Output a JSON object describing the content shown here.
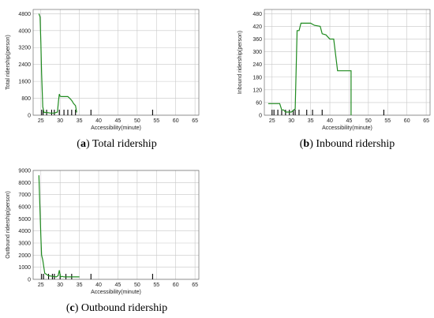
{
  "chart_data": [
    {
      "type": "line",
      "caption_letter": "a",
      "caption_text": " Total ridership",
      "xlabel": "Accessibility(minute)",
      "ylabel": "Total ridership(person)",
      "xlim": [
        23,
        66
      ],
      "ylim": [
        0,
        5000
      ],
      "xticks": [
        25,
        30,
        35,
        40,
        45,
        50,
        55,
        60,
        65
      ],
      "yticks": [
        0,
        800,
        1600,
        2400,
        3200,
        4000,
        4800
      ],
      "grid": true,
      "series_color": "#1f8a1f",
      "x": [
        24.5,
        24.8,
        25.0,
        25.2,
        25.5,
        25.8,
        26.5,
        27.5,
        28.5,
        29.3,
        29.6,
        29.8,
        30.0,
        30.3,
        31.0,
        32.0,
        32.5,
        33.0,
        33.5,
        34.0,
        34.3
      ],
      "y": [
        4800,
        4650,
        3400,
        2000,
        400,
        130,
        130,
        100,
        100,
        150,
        700,
        1000,
        900,
        880,
        880,
        880,
        800,
        700,
        550,
        450,
        130
      ],
      "rug": [
        25.2,
        25.6,
        26.5,
        27.8,
        28.5,
        29.8,
        31.0,
        32.0,
        33.0,
        34.0,
        38.0,
        54.0
      ]
    },
    {
      "type": "line",
      "caption_letter": "b",
      "caption_text": " Inbound ridership",
      "xlabel": "Accessibility(minute)",
      "ylabel": "Inbound ridership(person)",
      "xlim": [
        23,
        66
      ],
      "ylim": [
        0,
        500
      ],
      "xticks": [
        25,
        30,
        35,
        40,
        45,
        50,
        55,
        60,
        65
      ],
      "yticks": [
        0,
        60,
        120,
        180,
        240,
        300,
        360,
        420,
        480
      ],
      "grid": true,
      "series_color": "#1f8a1f",
      "x": [
        24.0,
        27.0,
        27.5,
        28.0,
        28.5,
        30.0,
        31.0,
        31.5,
        32.0,
        32.5,
        33.0,
        35.0,
        36.0,
        37.5,
        38.0,
        39.0,
        40.0,
        41.0,
        42.0,
        45.5,
        45.5
      ],
      "y": [
        55,
        55,
        25,
        25,
        15,
        15,
        30,
        400,
        400,
        435,
        435,
        435,
        425,
        420,
        385,
        380,
        360,
        360,
        210,
        210,
        0
      ],
      "rug": [
        25.0,
        25.5,
        26.5,
        27.5,
        28.5,
        29.5,
        30.5,
        31.0,
        32.0,
        34.0,
        35.5,
        38.0,
        54.0
      ]
    },
    {
      "type": "line",
      "caption_letter": "c",
      "caption_text": " Outbound ridership",
      "xlabel": "Accessibility(minute)",
      "ylabel": "Outbound ridership(person)",
      "xlim": [
        23,
        66
      ],
      "ylim": [
        0,
        9000
      ],
      "xticks": [
        25,
        30,
        35,
        40,
        45,
        50,
        55,
        60,
        65
      ],
      "yticks": [
        0,
        1000,
        2000,
        3000,
        4000,
        5000,
        6000,
        7000,
        8000,
        9000
      ],
      "grid": true,
      "series_color": "#1f8a1f",
      "x": [
        24.5,
        24.8,
        25.0,
        25.2,
        25.5,
        26.0,
        27.0,
        28.0,
        29.0,
        29.5,
        29.8,
        30.1,
        30.5,
        31.0,
        33.0,
        35.0
      ],
      "y": [
        8600,
        5500,
        3500,
        2000,
        1600,
        500,
        300,
        250,
        200,
        300,
        750,
        200,
        250,
        200,
        200,
        200
      ],
      "rug": [
        25.2,
        25.7,
        27.0,
        28.0,
        28.5,
        30.0,
        31.5,
        33.0,
        38.0,
        54.0
      ]
    }
  ]
}
